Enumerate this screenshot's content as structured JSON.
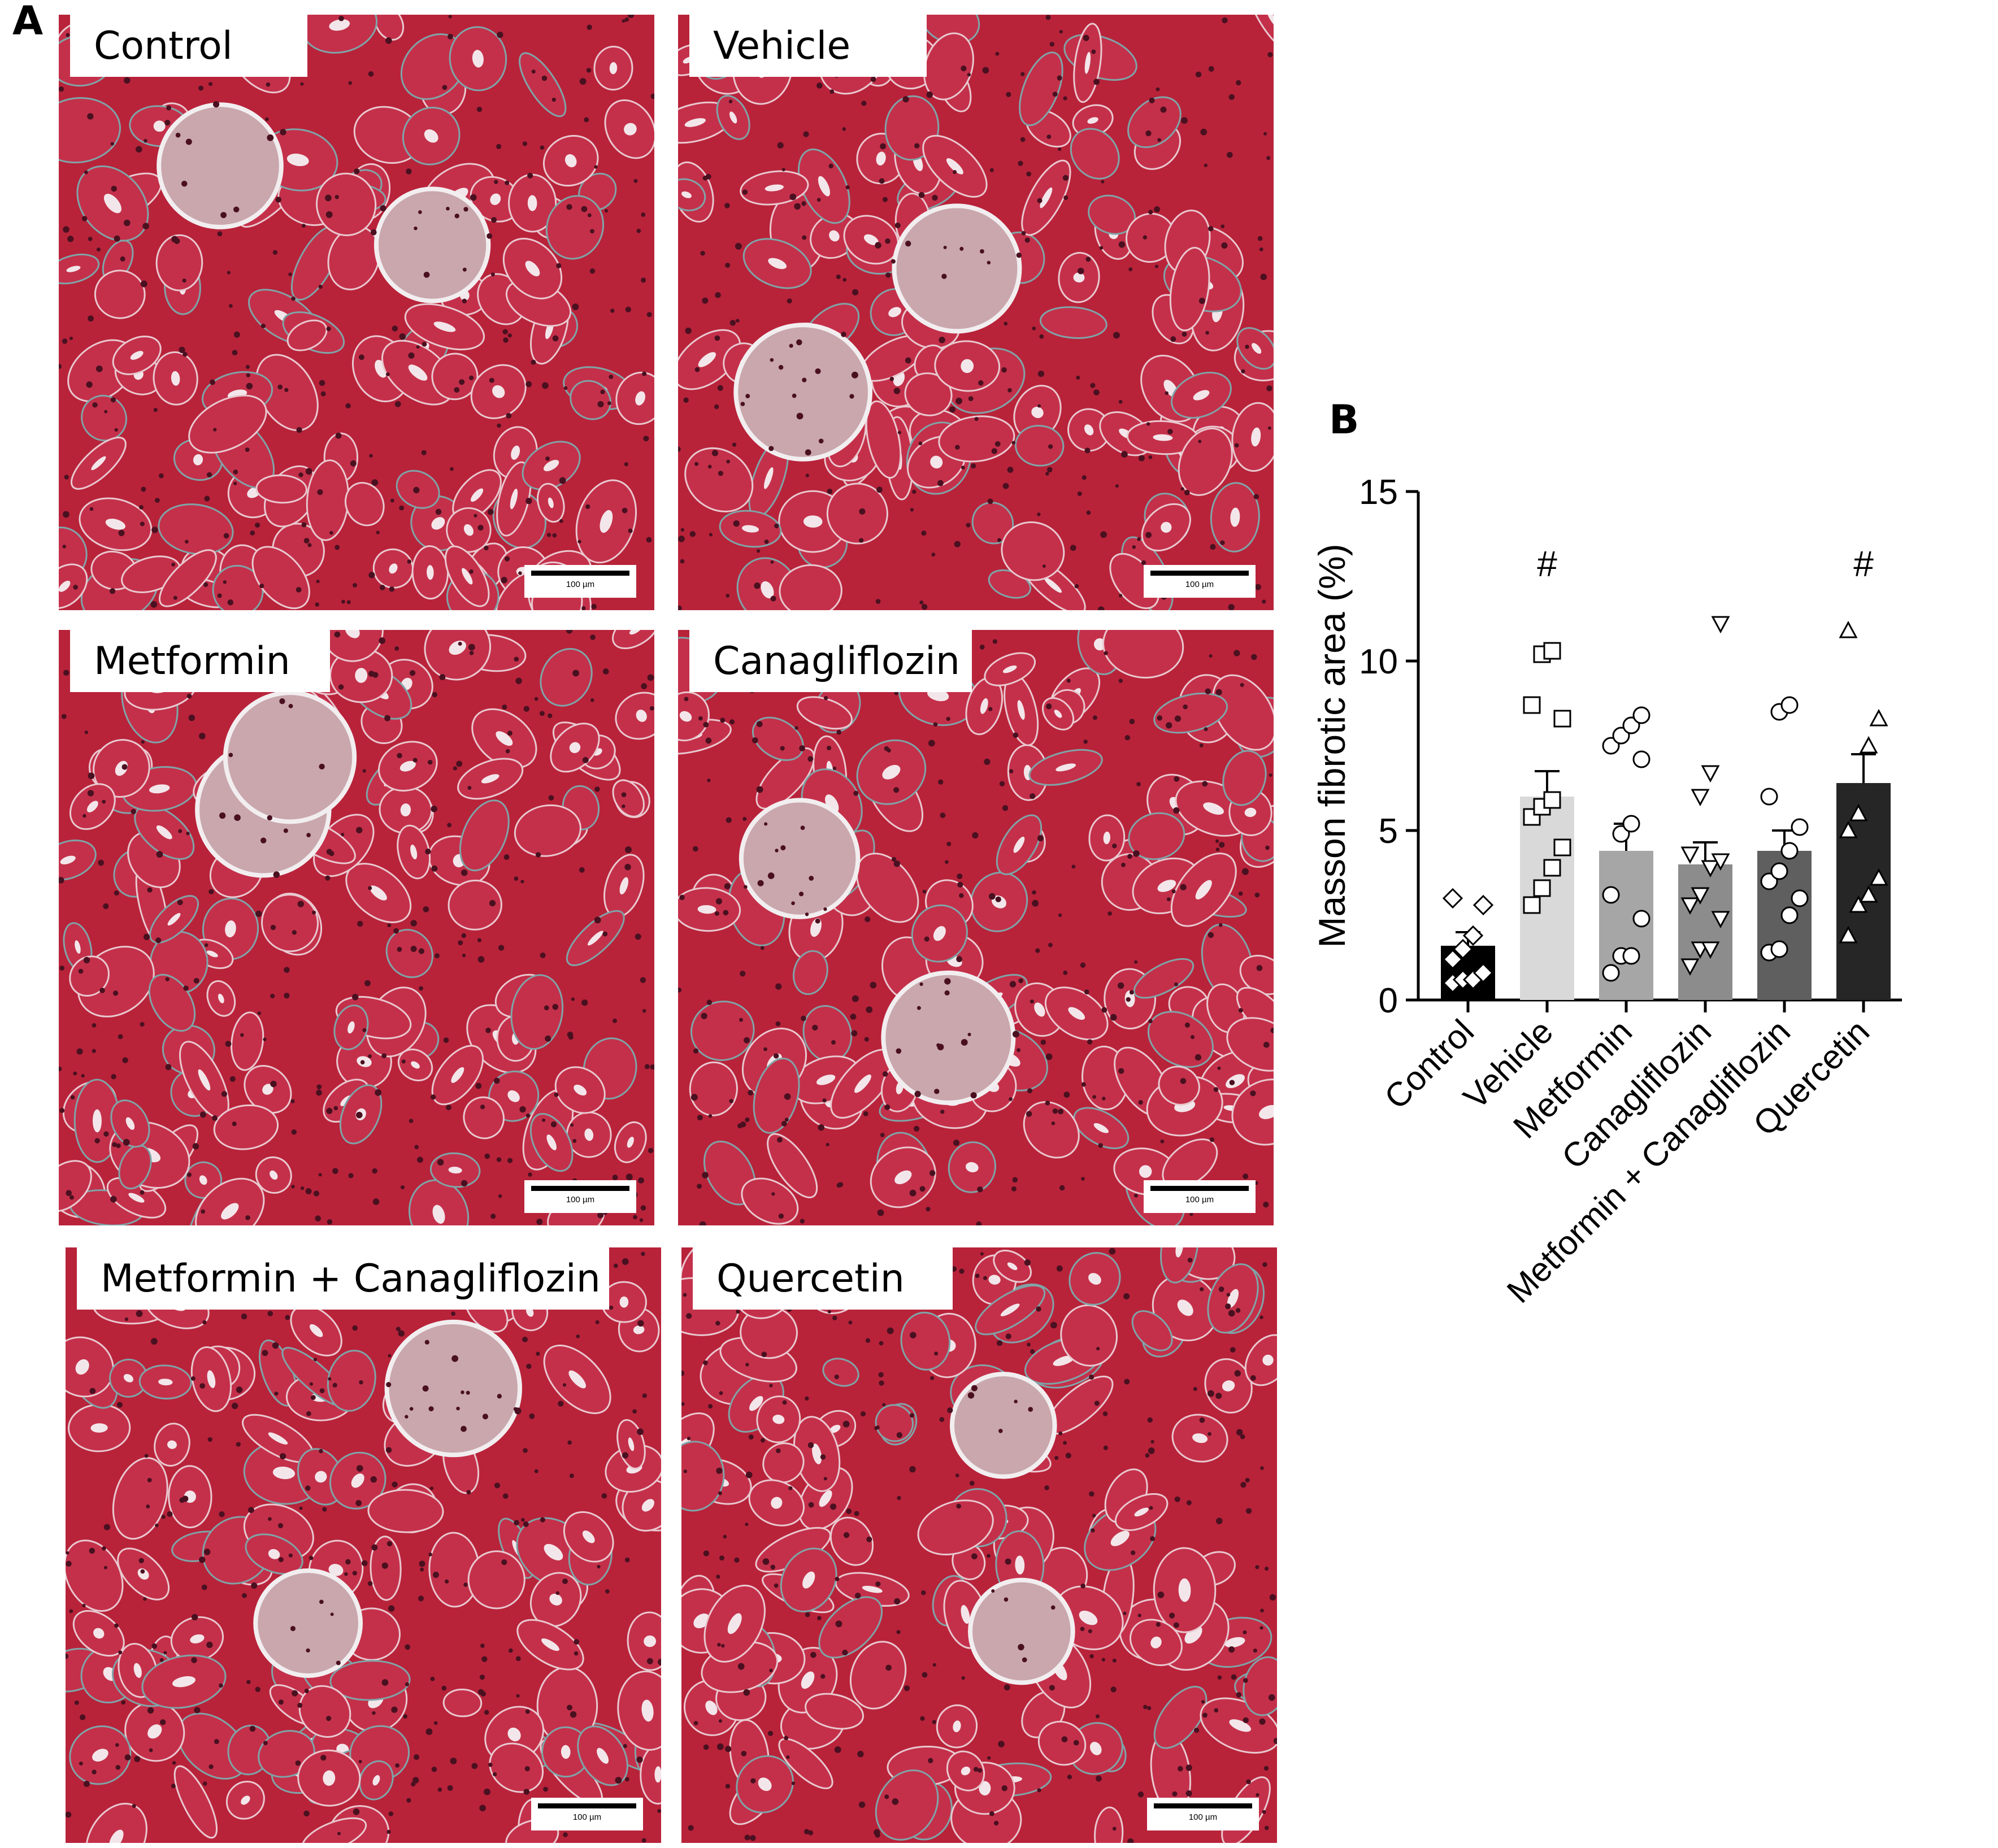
{
  "panel_a": {
    "letter": "A",
    "images": [
      {
        "label": "Control",
        "scale": "100 µm",
        "seed": 11
      },
      {
        "label": "Vehicle",
        "scale": "100 µm",
        "seed": 23
      },
      {
        "label": "Metformin",
        "scale": "100 µm",
        "seed": 37
      },
      {
        "label": "Canagliflozin",
        "scale": "100 µm",
        "seed": 41
      },
      {
        "label": "Metformin + Canagliflozin",
        "scale": "100 µm",
        "seed": 53
      },
      {
        "label": "Quercetin",
        "scale": "100 µm",
        "seed": 67
      }
    ],
    "colors": {
      "tissue": "#b8233a",
      "tubule": "#c4304a",
      "lumen": "#f3e6ea",
      "nuclei": "#4a1020",
      "fibrosis": "#7fa4a8"
    }
  },
  "panel_b": {
    "letter": "B"
  },
  "chart_data": {
    "type": "bar",
    "ylabel": "Masson fibrotic area (%)",
    "ylim": [
      0,
      15
    ],
    "yticks": [
      0,
      5,
      10,
      15
    ],
    "categories": [
      "Control",
      "Vehicle",
      "Metformin",
      "Canagliflozin",
      "Metformin + Canagliflozin",
      "Quercetin"
    ],
    "means": [
      1.6,
      6.0,
      4.4,
      4.0,
      4.4,
      6.4
    ],
    "sem": [
      0.4,
      0.75,
      0.8,
      0.65,
      0.6,
      0.85
    ],
    "bar_colors": [
      "#000000",
      "#d9d9d9",
      "#a6a6a6",
      "#8c8c8c",
      "#5f5f5f",
      "#262626"
    ],
    "markers": [
      "diamond",
      "square",
      "circle",
      "triangle-down",
      "circle",
      "triangle-up"
    ],
    "significance": [
      "",
      "#",
      "",
      "",
      "",
      "#"
    ],
    "points": [
      [
        0.5,
        0.6,
        0.6,
        0.8,
        1.2,
        1.5,
        1.9,
        2.8,
        3.0
      ],
      [
        2.8,
        3.3,
        3.9,
        4.5,
        5.4,
        5.7,
        5.9,
        8.3,
        8.7,
        10.2,
        10.3
      ],
      [
        0.8,
        1.3,
        1.3,
        2.4,
        3.1,
        4.9,
        5.2,
        7.1,
        7.5,
        7.8,
        8.1,
        8.4
      ],
      [
        1.0,
        1.5,
        1.5,
        2.4,
        2.8,
        3.1,
        3.9,
        4.1,
        4.3,
        6.0,
        6.7,
        11.1
      ],
      [
        1.4,
        1.5,
        2.5,
        3.0,
        3.5,
        3.8,
        4.4,
        5.1,
        6.0,
        8.5,
        8.7
      ],
      [
        1.9,
        2.8,
        3.1,
        3.6,
        5.0,
        5.5,
        7.5,
        8.3,
        10.9
      ]
    ]
  }
}
